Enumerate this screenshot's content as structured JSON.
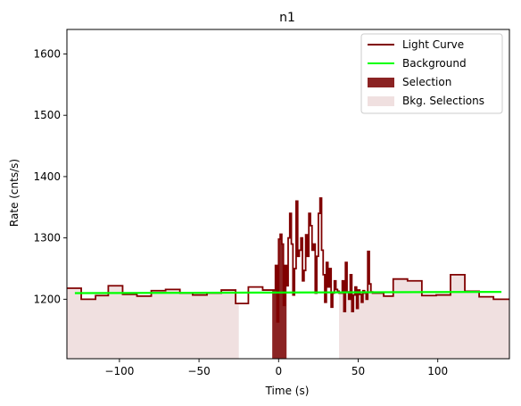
{
  "chart_data": {
    "type": "line",
    "title": "n1",
    "xlabel": "Time (s)",
    "ylabel": "Rate (cnts/s)",
    "xlim": [
      -133,
      145
    ],
    "ylim": [
      1103,
      1640
    ],
    "xticks": [
      -100,
      -50,
      0,
      50,
      100
    ],
    "yticks": [
      1200,
      1300,
      1400,
      1500,
      1600
    ],
    "legend_position": "upper right",
    "grid": false,
    "colors": {
      "light_curve": "#800000",
      "background": "#00ff00",
      "selection": "#8b2323",
      "bkg_selection": "#f0e0e0"
    },
    "legend": [
      {
        "label": "Light Curve",
        "kind": "line",
        "color": "#800000"
      },
      {
        "label": "Background",
        "kind": "line",
        "color": "#00ff00"
      },
      {
        "label": "Selection",
        "kind": "patch",
        "color": "#8b2323"
      },
      {
        "label": "Bkg. Selections",
        "kind": "patch",
        "color": "#f0e0e0"
      }
    ],
    "background_line": {
      "x": [
        -128,
        140
      ],
      "y": [
        1210,
        1212
      ]
    },
    "selection_interval": [
      -4,
      5
    ],
    "bkg_selection_intervals": [
      [
        -133,
        -25
      ],
      [
        38,
        145
      ]
    ],
    "light_curve": {
      "x": [
        -133,
        -124,
        -115,
        -107,
        -98,
        -89,
        -80,
        -71,
        -62,
        -54,
        -45,
        -36,
        -27,
        -19,
        -10,
        -2,
        -1,
        0,
        1,
        2,
        3,
        4,
        5,
        6,
        7,
        8,
        9,
        10,
        11,
        12,
        13,
        14,
        15,
        16,
        17,
        18,
        19,
        20,
        21,
        22,
        23,
        24,
        25,
        26,
        27,
        28,
        29,
        30,
        31,
        32,
        33,
        34,
        35,
        36,
        37,
        38,
        39,
        40,
        41,
        42,
        43,
        44,
        45,
        46,
        47,
        48,
        49,
        50,
        51,
        52,
        53,
        54,
        55,
        56,
        57,
        58,
        59,
        60,
        61,
        62,
        63,
        64,
        66,
        72,
        81,
        90,
        99,
        108,
        117,
        126,
        135,
        145
      ],
      "y": [
        1218,
        1200,
        1206,
        1222,
        1208,
        1205,
        1214,
        1216,
        1210,
        1207,
        1210,
        1215,
        1193,
        1220,
        1215,
        1255,
        1163,
        1298,
        1306,
        1290,
        1190,
        1255,
        1222,
        1300,
        1340,
        1290,
        1207,
        1250,
        1360,
        1270,
        1280,
        1300,
        1230,
        1247,
        1305,
        1270,
        1340,
        1320,
        1280,
        1290,
        1210,
        1270,
        1340,
        1365,
        1280,
        1240,
        1195,
        1260,
        1220,
        1250,
        1187,
        1210,
        1230,
        1216,
        1213,
        1210,
        1210,
        1230,
        1180,
        1260,
        1212,
        1200,
        1240,
        1180,
        1207,
        1220,
        1185,
        1215,
        1208,
        1195,
        1214,
        1210,
        1200,
        1278,
        1225,
        1212,
        1210,
        1210,
        1210,
        1210,
        1210,
        1210,
        1205,
        1233,
        1230,
        1206,
        1207,
        1240,
        1213,
        1204,
        1200,
        1200
      ]
    }
  }
}
